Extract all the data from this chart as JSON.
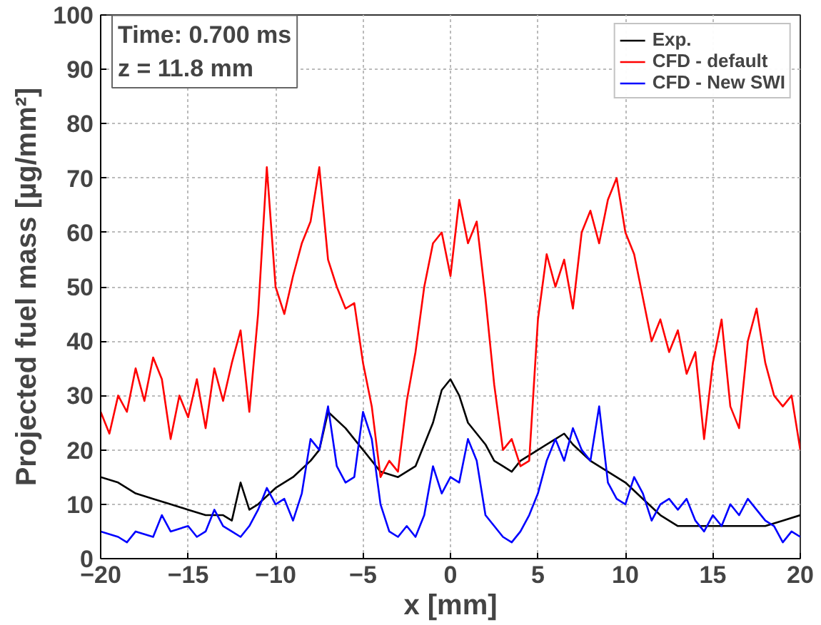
{
  "chart_data": {
    "type": "line",
    "xlabel": "x [mm]",
    "ylabel": "Projected fuel mass [µg/mm²]",
    "xlim": [
      -20,
      20
    ],
    "ylim": [
      0,
      100
    ],
    "xticks": [
      -20,
      -15,
      -10,
      -5,
      0,
      5,
      10,
      15,
      20
    ],
    "yticks": [
      0,
      10,
      20,
      30,
      40,
      50,
      60,
      70,
      80,
      90,
      100
    ],
    "grid": true,
    "legend": "top right",
    "marker": "none",
    "line_style": "solid",
    "annotations": [
      "Time: 0.700 ms",
      "z = 11.8 mm"
    ],
    "series": [
      {
        "name": "Exp.",
        "color": "#000000",
        "x": [
          -20,
          -19,
          -18,
          -17,
          -16,
          -15,
          -14,
          -13,
          -12.5,
          -12,
          -11.5,
          -11,
          -10,
          -9,
          -8,
          -7.5,
          -7,
          -6,
          -5,
          -4,
          -3,
          -2,
          -1,
          -0.5,
          0,
          0.5,
          1,
          2,
          2.5,
          3,
          3.5,
          4,
          5,
          6,
          6.5,
          7,
          8,
          9,
          10,
          11,
          12,
          13,
          14,
          15,
          16,
          17,
          18,
          19,
          20
        ],
        "values": [
          15,
          14,
          12,
          11,
          10,
          9,
          8,
          8,
          7,
          14,
          9,
          10,
          13,
          15,
          18,
          20,
          27,
          24,
          20,
          16,
          15,
          17,
          25,
          31,
          33,
          30,
          25,
          21,
          18,
          17,
          16,
          18,
          20,
          22,
          23,
          21,
          18,
          16,
          14,
          11,
          8,
          6,
          6,
          6,
          6,
          6,
          6,
          7,
          8
        ]
      },
      {
        "name": "CFD - default",
        "color": "#ff0000",
        "x": [
          -20,
          -19.5,
          -19,
          -18.5,
          -18,
          -17.5,
          -17,
          -16.5,
          -16,
          -15.5,
          -15,
          -14.5,
          -14,
          -13.5,
          -13,
          -12.5,
          -12,
          -11.5,
          -11,
          -10.5,
          -10,
          -9.5,
          -9,
          -8.5,
          -8,
          -7.5,
          -7,
          -6.5,
          -6,
          -5.5,
          -5,
          -4.5,
          -4,
          -3.5,
          -3,
          -2.5,
          -2,
          -1.5,
          -1,
          -0.5,
          0,
          0.5,
          1,
          1.5,
          2,
          2.5,
          3,
          3.5,
          4,
          4.5,
          5,
          5.5,
          6,
          6.5,
          7,
          7.5,
          8,
          8.5,
          9,
          9.5,
          10,
          10.5,
          11,
          11.5,
          12,
          12.5,
          13,
          13.5,
          14,
          14.5,
          15,
          15.5,
          16,
          16.5,
          17,
          17.5,
          18,
          18.5,
          19,
          19.5,
          20
        ],
        "values": [
          27,
          23,
          30,
          27,
          35,
          29,
          37,
          33,
          22,
          30,
          26,
          33,
          24,
          35,
          29,
          36,
          42,
          27,
          45,
          72,
          50,
          45,
          52,
          58,
          62,
          72,
          55,
          50,
          46,
          47,
          36,
          28,
          15,
          18,
          16,
          29,
          38,
          50,
          58,
          60,
          52,
          66,
          58,
          62,
          48,
          32,
          20,
          22,
          17,
          18,
          44,
          56,
          50,
          55,
          46,
          60,
          64,
          58,
          66,
          70,
          60,
          56,
          48,
          40,
          44,
          38,
          42,
          34,
          38,
          22,
          36,
          44,
          28,
          24,
          40,
          46,
          36,
          30,
          28,
          30,
          20
        ]
      },
      {
        "name": "CFD - New SWI",
        "color": "#0000ff",
        "x": [
          -20,
          -19,
          -18.5,
          -18,
          -17,
          -16.5,
          -16,
          -15,
          -14.5,
          -14,
          -13.5,
          -13,
          -12.5,
          -12,
          -11.5,
          -11,
          -10.5,
          -10,
          -9.5,
          -9,
          -8.5,
          -8,
          -7.5,
          -7,
          -6.5,
          -6,
          -5.5,
          -5,
          -4.5,
          -4,
          -3.5,
          -3,
          -2.5,
          -2,
          -1.5,
          -1,
          -0.5,
          0,
          0.5,
          1,
          1.5,
          2,
          2.5,
          3,
          3.5,
          4,
          4.5,
          5,
          5.5,
          6,
          6.5,
          7,
          7.5,
          8,
          8.5,
          9,
          9.5,
          10,
          10.5,
          11,
          11.5,
          12,
          12.5,
          13,
          13.5,
          14,
          14.5,
          15,
          15.5,
          16,
          16.5,
          17,
          17.5,
          18,
          18.5,
          19,
          19.5,
          20
        ],
        "values": [
          5,
          4,
          3,
          5,
          4,
          8,
          5,
          6,
          4,
          5,
          9,
          6,
          5,
          4,
          6,
          9,
          13,
          10,
          11,
          7,
          12,
          22,
          20,
          28,
          17,
          14,
          15,
          27,
          22,
          10,
          5,
          4,
          6,
          4,
          8,
          17,
          12,
          15,
          14,
          22,
          18,
          8,
          6,
          4,
          3,
          5,
          8,
          12,
          18,
          22,
          18,
          24,
          20,
          18,
          28,
          14,
          11,
          10,
          15,
          12,
          7,
          10,
          11,
          9,
          11,
          7,
          5,
          8,
          6,
          10,
          8,
          11,
          9,
          7,
          6,
          3,
          5,
          4
        ]
      }
    ]
  }
}
